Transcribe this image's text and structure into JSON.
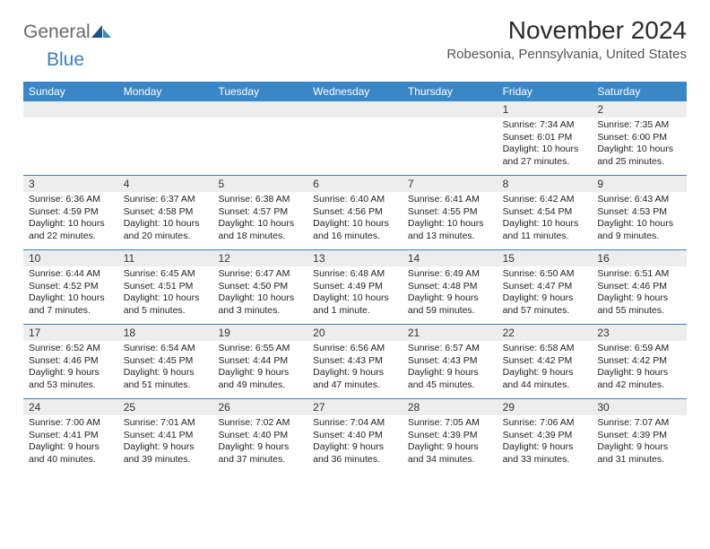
{
  "brand": {
    "word1": "General",
    "word2": "Blue",
    "word1_color": "#6a6a6a",
    "word2_color": "#3a7fbf",
    "icon_color_dark": "#1b4f8a",
    "icon_color_light": "#3a87c7"
  },
  "title": "November 2024",
  "location": "Robesonia, Pennsylvania, United States",
  "header_bg": "#3a87c7",
  "header_fg": "#ffffff",
  "divider_color": "#3a7fbf",
  "daynum_bg": "#ededed",
  "day_headers": [
    "Sunday",
    "Monday",
    "Tuesday",
    "Wednesday",
    "Thursday",
    "Friday",
    "Saturday"
  ],
  "weeks": [
    [
      {
        "num": "",
        "lines": []
      },
      {
        "num": "",
        "lines": []
      },
      {
        "num": "",
        "lines": []
      },
      {
        "num": "",
        "lines": []
      },
      {
        "num": "",
        "lines": []
      },
      {
        "num": "1",
        "lines": [
          "Sunrise: 7:34 AM",
          "Sunset: 6:01 PM",
          "Daylight: 10 hours",
          "and 27 minutes."
        ]
      },
      {
        "num": "2",
        "lines": [
          "Sunrise: 7:35 AM",
          "Sunset: 6:00 PM",
          "Daylight: 10 hours",
          "and 25 minutes."
        ]
      }
    ],
    [
      {
        "num": "3",
        "lines": [
          "Sunrise: 6:36 AM",
          "Sunset: 4:59 PM",
          "Daylight: 10 hours",
          "and 22 minutes."
        ]
      },
      {
        "num": "4",
        "lines": [
          "Sunrise: 6:37 AM",
          "Sunset: 4:58 PM",
          "Daylight: 10 hours",
          "and 20 minutes."
        ]
      },
      {
        "num": "5",
        "lines": [
          "Sunrise: 6:38 AM",
          "Sunset: 4:57 PM",
          "Daylight: 10 hours",
          "and 18 minutes."
        ]
      },
      {
        "num": "6",
        "lines": [
          "Sunrise: 6:40 AM",
          "Sunset: 4:56 PM",
          "Daylight: 10 hours",
          "and 16 minutes."
        ]
      },
      {
        "num": "7",
        "lines": [
          "Sunrise: 6:41 AM",
          "Sunset: 4:55 PM",
          "Daylight: 10 hours",
          "and 13 minutes."
        ]
      },
      {
        "num": "8",
        "lines": [
          "Sunrise: 6:42 AM",
          "Sunset: 4:54 PM",
          "Daylight: 10 hours",
          "and 11 minutes."
        ]
      },
      {
        "num": "9",
        "lines": [
          "Sunrise: 6:43 AM",
          "Sunset: 4:53 PM",
          "Daylight: 10 hours",
          "and 9 minutes."
        ]
      }
    ],
    [
      {
        "num": "10",
        "lines": [
          "Sunrise: 6:44 AM",
          "Sunset: 4:52 PM",
          "Daylight: 10 hours",
          "and 7 minutes."
        ]
      },
      {
        "num": "11",
        "lines": [
          "Sunrise: 6:45 AM",
          "Sunset: 4:51 PM",
          "Daylight: 10 hours",
          "and 5 minutes."
        ]
      },
      {
        "num": "12",
        "lines": [
          "Sunrise: 6:47 AM",
          "Sunset: 4:50 PM",
          "Daylight: 10 hours",
          "and 3 minutes."
        ]
      },
      {
        "num": "13",
        "lines": [
          "Sunrise: 6:48 AM",
          "Sunset: 4:49 PM",
          "Daylight: 10 hours",
          "and 1 minute."
        ]
      },
      {
        "num": "14",
        "lines": [
          "Sunrise: 6:49 AM",
          "Sunset: 4:48 PM",
          "Daylight: 9 hours",
          "and 59 minutes."
        ]
      },
      {
        "num": "15",
        "lines": [
          "Sunrise: 6:50 AM",
          "Sunset: 4:47 PM",
          "Daylight: 9 hours",
          "and 57 minutes."
        ]
      },
      {
        "num": "16",
        "lines": [
          "Sunrise: 6:51 AM",
          "Sunset: 4:46 PM",
          "Daylight: 9 hours",
          "and 55 minutes."
        ]
      }
    ],
    [
      {
        "num": "17",
        "lines": [
          "Sunrise: 6:52 AM",
          "Sunset: 4:46 PM",
          "Daylight: 9 hours",
          "and 53 minutes."
        ]
      },
      {
        "num": "18",
        "lines": [
          "Sunrise: 6:54 AM",
          "Sunset: 4:45 PM",
          "Daylight: 9 hours",
          "and 51 minutes."
        ]
      },
      {
        "num": "19",
        "lines": [
          "Sunrise: 6:55 AM",
          "Sunset: 4:44 PM",
          "Daylight: 9 hours",
          "and 49 minutes."
        ]
      },
      {
        "num": "20",
        "lines": [
          "Sunrise: 6:56 AM",
          "Sunset: 4:43 PM",
          "Daylight: 9 hours",
          "and 47 minutes."
        ]
      },
      {
        "num": "21",
        "lines": [
          "Sunrise: 6:57 AM",
          "Sunset: 4:43 PM",
          "Daylight: 9 hours",
          "and 45 minutes."
        ]
      },
      {
        "num": "22",
        "lines": [
          "Sunrise: 6:58 AM",
          "Sunset: 4:42 PM",
          "Daylight: 9 hours",
          "and 44 minutes."
        ]
      },
      {
        "num": "23",
        "lines": [
          "Sunrise: 6:59 AM",
          "Sunset: 4:42 PM",
          "Daylight: 9 hours",
          "and 42 minutes."
        ]
      }
    ],
    [
      {
        "num": "24",
        "lines": [
          "Sunrise: 7:00 AM",
          "Sunset: 4:41 PM",
          "Daylight: 9 hours",
          "and 40 minutes."
        ]
      },
      {
        "num": "25",
        "lines": [
          "Sunrise: 7:01 AM",
          "Sunset: 4:41 PM",
          "Daylight: 9 hours",
          "and 39 minutes."
        ]
      },
      {
        "num": "26",
        "lines": [
          "Sunrise: 7:02 AM",
          "Sunset: 4:40 PM",
          "Daylight: 9 hours",
          "and 37 minutes."
        ]
      },
      {
        "num": "27",
        "lines": [
          "Sunrise: 7:04 AM",
          "Sunset: 4:40 PM",
          "Daylight: 9 hours",
          "and 36 minutes."
        ]
      },
      {
        "num": "28",
        "lines": [
          "Sunrise: 7:05 AM",
          "Sunset: 4:39 PM",
          "Daylight: 9 hours",
          "and 34 minutes."
        ]
      },
      {
        "num": "29",
        "lines": [
          "Sunrise: 7:06 AM",
          "Sunset: 4:39 PM",
          "Daylight: 9 hours",
          "and 33 minutes."
        ]
      },
      {
        "num": "30",
        "lines": [
          "Sunrise: 7:07 AM",
          "Sunset: 4:39 PM",
          "Daylight: 9 hours",
          "and 31 minutes."
        ]
      }
    ]
  ]
}
